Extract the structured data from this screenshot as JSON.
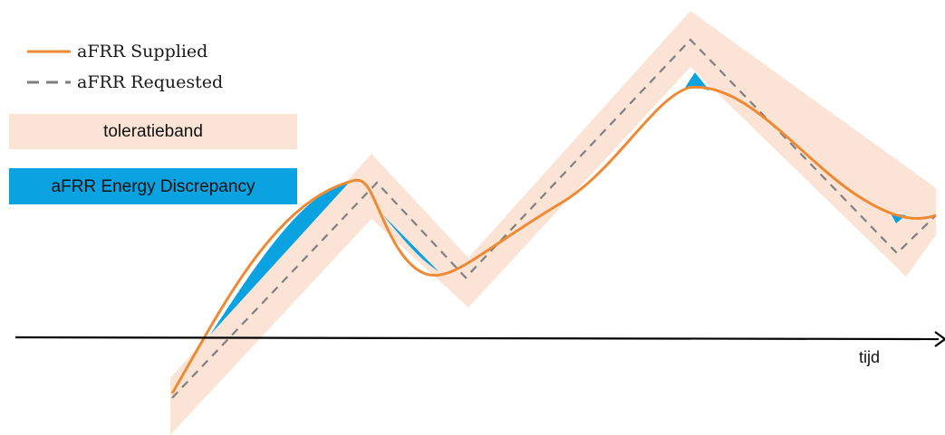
{
  "legend": {
    "supplied_label": "aFRR Supplied",
    "requested_label": "aFRR Requested",
    "band_label": "toleratieband",
    "discrepancy_label": "aFRR Energy Discrepancy"
  },
  "axis": {
    "x_label": "tijd"
  },
  "colors": {
    "supplied": "#ef8a34",
    "requested": "#7f7f7f",
    "band": "#fbe4d5",
    "discrepancy": "#0aa2e0",
    "axis": "#000000"
  }
}
